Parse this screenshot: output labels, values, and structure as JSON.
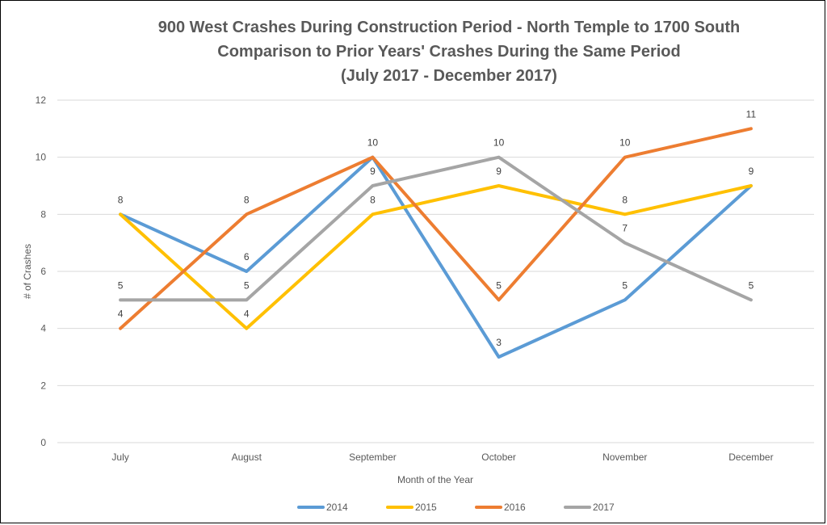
{
  "chart_data": {
    "type": "line",
    "title_lines": [
      "900 West Crashes During Construction Period - North Temple to 1700 South",
      "Comparison to Prior Years' Crashes During the Same Period",
      "(July 2017 - December 2017)"
    ],
    "xlabel": "Month of the Year",
    "ylabel": "# of Crashes",
    "categories": [
      "July",
      "August",
      "September",
      "October",
      "November",
      "December"
    ],
    "ylim": [
      0,
      12
    ],
    "yticks": [
      0,
      2,
      4,
      6,
      8,
      10,
      12
    ],
    "grid": true,
    "legend_position": "bottom",
    "series": [
      {
        "name": "2014",
        "color": "#5B9BD5",
        "values": [
          8,
          6,
          10,
          3,
          5,
          9
        ]
      },
      {
        "name": "2015",
        "color": "#FFC000",
        "values": [
          8,
          4,
          8,
          9,
          8,
          9
        ]
      },
      {
        "name": "2016",
        "color": "#ED7D31",
        "values": [
          4,
          8,
          10,
          5,
          10,
          11
        ]
      },
      {
        "name": "2017",
        "color": "#A5A5A5",
        "values": [
          5,
          5,
          9,
          10,
          7,
          5
        ]
      }
    ],
    "data_labels": [
      {
        "category": "July",
        "value": 8,
        "text": "8"
      },
      {
        "category": "July",
        "value": 5,
        "text": "5"
      },
      {
        "category": "July",
        "value": 4,
        "text": "4"
      },
      {
        "category": "August",
        "value": 8,
        "text": "8"
      },
      {
        "category": "August",
        "value": 6,
        "text": "6"
      },
      {
        "category": "August",
        "value": 5,
        "text": "5"
      },
      {
        "category": "August",
        "value": 4,
        "text": "4"
      },
      {
        "category": "September",
        "value": 10,
        "text": "10"
      },
      {
        "category": "September",
        "value": 9,
        "text": "9"
      },
      {
        "category": "September",
        "value": 8,
        "text": "8"
      },
      {
        "category": "October",
        "value": 10,
        "text": "10"
      },
      {
        "category": "October",
        "value": 9,
        "text": "9"
      },
      {
        "category": "October",
        "value": 5,
        "text": "5"
      },
      {
        "category": "October",
        "value": 3,
        "text": "3"
      },
      {
        "category": "November",
        "value": 10,
        "text": "10"
      },
      {
        "category": "November",
        "value": 8,
        "text": "8"
      },
      {
        "category": "November",
        "value": 7,
        "text": "7"
      },
      {
        "category": "November",
        "value": 5,
        "text": "5"
      },
      {
        "category": "December",
        "value": 11,
        "text": "11"
      },
      {
        "category": "December",
        "value": 9,
        "text": "9"
      },
      {
        "category": "December",
        "value": 5,
        "text": "5"
      }
    ],
    "gridline_color": "#D9D9D9"
  }
}
